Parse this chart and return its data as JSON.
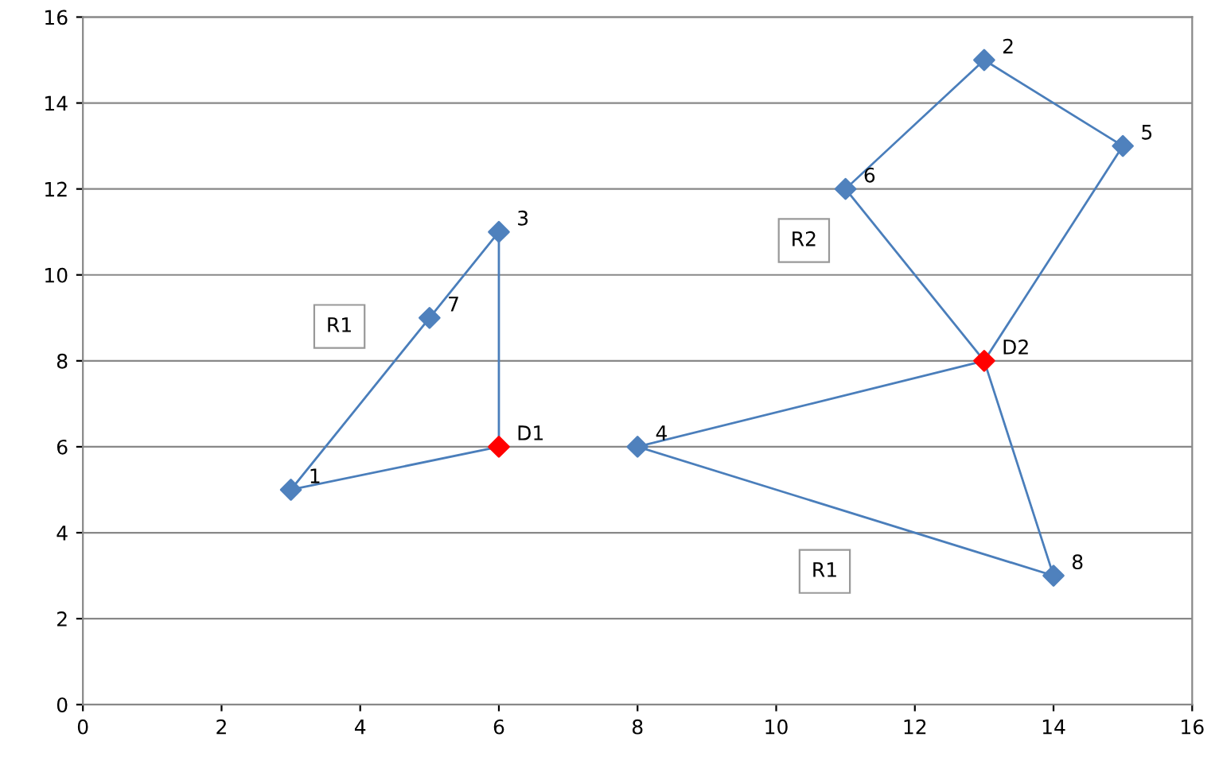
{
  "chart_data": {
    "type": "scatter",
    "xlim": [
      0,
      16
    ],
    "ylim": [
      0,
      16
    ],
    "xticks": [
      0,
      2,
      4,
      6,
      8,
      10,
      12,
      14,
      16
    ],
    "yticks": [
      0,
      2,
      4,
      6,
      8,
      10,
      12,
      14,
      16
    ],
    "grid": "y",
    "marker": "diamond",
    "series": [
      {
        "type": "line",
        "marker": "none",
        "color": "#4a7ebb",
        "x": [
          3,
          5,
          6,
          6
        ],
        "values": [
          5,
          9,
          11,
          6
        ]
      },
      {
        "type": "line",
        "marker": "none",
        "color": "#4a7ebb",
        "x": [
          3,
          6
        ],
        "values": [
          5,
          6
        ]
      },
      {
        "type": "line",
        "marker": "none",
        "color": "#4a7ebb",
        "x": [
          8,
          13,
          14
        ],
        "values": [
          6,
          8,
          3
        ]
      },
      {
        "type": "line",
        "marker": "none",
        "color": "#4a7ebb",
        "x": [
          8,
          14
        ],
        "values": [
          6,
          3
        ]
      },
      {
        "type": "line",
        "marker": "none",
        "color": "#4a7ebb",
        "x": [
          11,
          13,
          15,
          13
        ],
        "values": [
          12,
          15,
          13,
          8
        ]
      },
      {
        "type": "line",
        "marker": "none",
        "color": "#4a7ebb",
        "x": [
          11,
          13
        ],
        "values": [
          12,
          8
        ]
      },
      {
        "color": "#4f81bd",
        "x": [
          3,
          13,
          6,
          8,
          15,
          11,
          5,
          14
        ],
        "values": [
          5,
          15,
          11,
          6,
          13,
          12,
          9,
          3
        ]
      },
      {
        "color": "#ff0000",
        "x": [
          6,
          13
        ],
        "values": [
          6,
          8
        ]
      }
    ],
    "annotations": [
      {
        "text": "1",
        "x": 3,
        "y": 5
      },
      {
        "text": "2",
        "x": 13,
        "y": 15
      },
      {
        "text": "3",
        "x": 6,
        "y": 11
      },
      {
        "text": "4",
        "x": 8,
        "y": 6
      },
      {
        "text": "5",
        "x": 15,
        "y": 13
      },
      {
        "text": "6",
        "x": 11,
        "y": 12
      },
      {
        "text": "7",
        "x": 5,
        "y": 9
      },
      {
        "text": "8",
        "x": 14,
        "y": 3
      },
      {
        "text": "D1",
        "x": 6,
        "y": 6
      },
      {
        "text": "D2",
        "x": 13,
        "y": 8
      },
      {
        "text": "R1",
        "x": 3.7,
        "y": 8.8
      },
      {
        "text": "R2",
        "x": 10.4,
        "y": 10.8
      },
      {
        "text": "R1",
        "x": 10.7,
        "y": 3.1
      }
    ]
  }
}
